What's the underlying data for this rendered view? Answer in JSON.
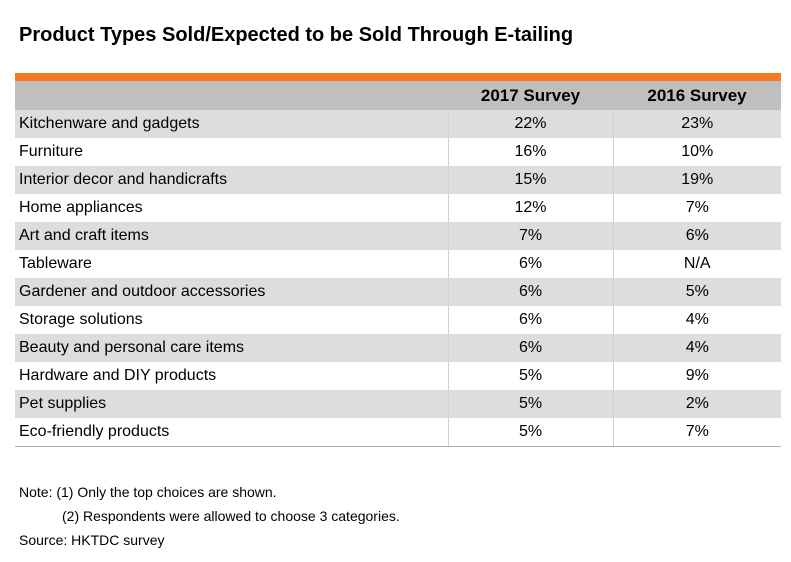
{
  "title": "Product Types Sold/Expected to be Sold Through E-tailing",
  "table": {
    "headers": [
      "",
      "2017 Survey",
      "2016 Survey"
    ],
    "rows": [
      [
        "Kitchenware and gadgets",
        "22%",
        "23%"
      ],
      [
        "Furniture",
        "16%",
        "10%"
      ],
      [
        "Interior decor and handicrafts",
        "15%",
        "19%"
      ],
      [
        "Home appliances",
        "12%",
        "7%"
      ],
      [
        "Art and craft items",
        "7%",
        "6%"
      ],
      [
        "Tableware",
        "6%",
        "N/A"
      ],
      [
        "Gardener and outdoor accessories",
        "6%",
        "5%"
      ],
      [
        "Storage solutions",
        "6%",
        "4%"
      ],
      [
        "Beauty and personal care items",
        "6%",
        "4%"
      ],
      [
        "Hardware and DIY products",
        "5%",
        "9%"
      ],
      [
        "Pet supplies",
        "5%",
        "2%"
      ],
      [
        "Eco-friendly products",
        "5%",
        "7%"
      ]
    ]
  },
  "notes": {
    "note1": "Note: (1) Only the top choices are shown.",
    "note2": "(2) Respondents were allowed to choose 3 categories.",
    "source": "Source: HKTDC survey"
  },
  "colors": {
    "accent": "#f47b20",
    "header_bg": "#bfbfbf",
    "row_shade": "#dddddd"
  }
}
